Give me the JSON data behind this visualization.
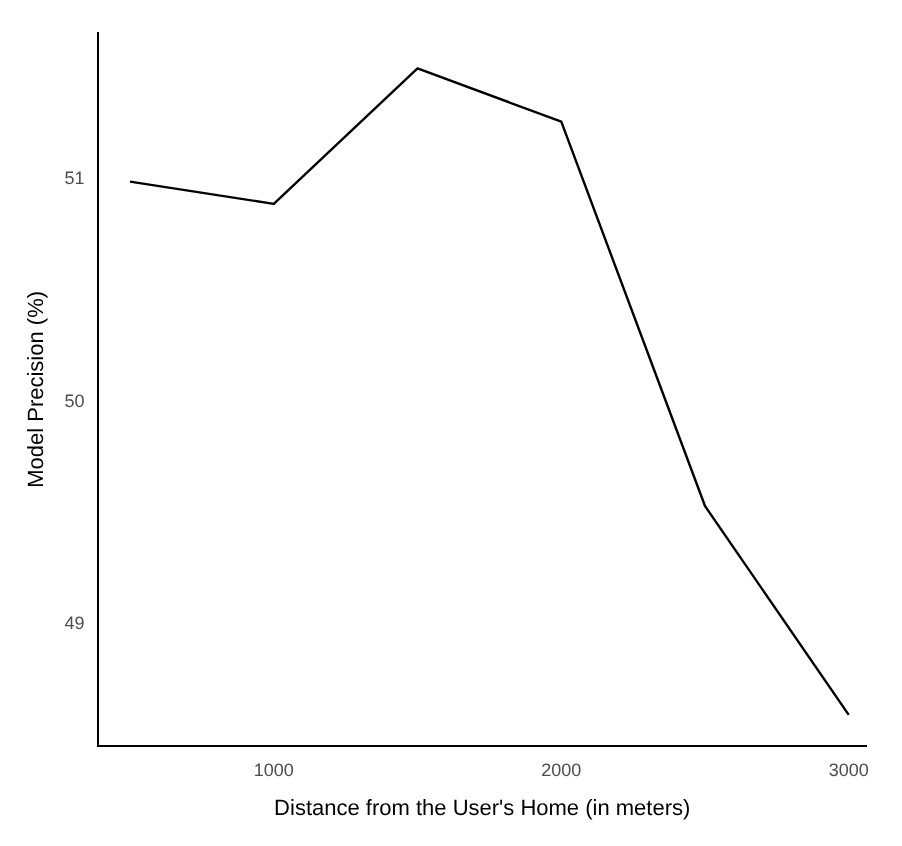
{
  "chart_data": {
    "type": "line",
    "xlabel": "Distance from the User's Home (in meters)",
    "ylabel": "Model Precision (%)",
    "x": [
      500,
      1000,
      1500,
      2000,
      2500,
      3000
    ],
    "series": [
      {
        "color": "#000000",
        "values": [
          50.99,
          50.89,
          51.5,
          51.26,
          49.53,
          48.59
        ]
      }
    ],
    "xlim": [
      390,
      3060
    ],
    "xticks": [
      1000,
      2000,
      3000
    ],
    "ylim": [
      48.45,
      51.66
    ],
    "yticks": [
      49,
      50,
      51
    ],
    "grid": false,
    "legend": false,
    "marker": "none",
    "line_style": "solid"
  }
}
